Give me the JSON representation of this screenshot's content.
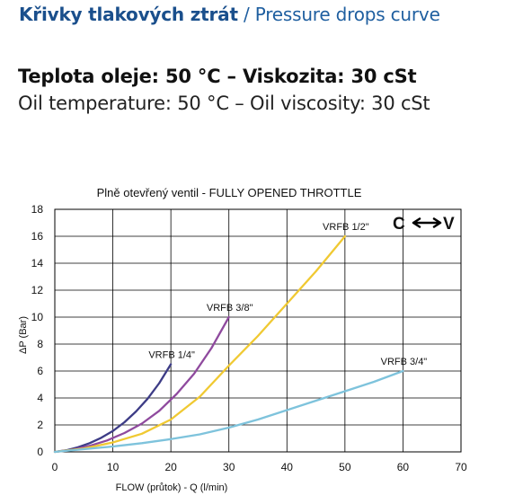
{
  "header": {
    "title_cz": "Křivky tlakových ztrát",
    "title_separator": " / ",
    "title_en": "Pressure drops curve",
    "temp_cz": "Teplota oleje: 50 °C – Viskozita: 30 cSt",
    "temp_en": "Oil temperature: 50 °C – Oil viscosity: 30 cSt"
  },
  "chart_data": {
    "type": "line",
    "title": "Plně otevřený ventil - FULLY OPENED THROTTLE",
    "direction_label": "C",
    "direction_label_end": "V",
    "xlabel": "FLOW (průtok) - Q (l/min)",
    "ylabel": "ΔP (Bar)",
    "xlim": [
      0,
      70
    ],
    "ylim": [
      0,
      18
    ],
    "xticks": [
      0,
      10,
      20,
      30,
      40,
      50,
      60,
      70
    ],
    "yticks": [
      0,
      2,
      4,
      6,
      8,
      10,
      12,
      14,
      16,
      18
    ],
    "grid": true,
    "series": [
      {
        "name": "VRFB 1/4\"",
        "color": "#3d3c86",
        "x": [
          0,
          2,
          4,
          6,
          8,
          10,
          12,
          14,
          16,
          18,
          20
        ],
        "y": [
          0,
          0.12,
          0.35,
          0.65,
          1.05,
          1.55,
          2.2,
          3.0,
          3.95,
          5.1,
          6.5
        ]
      },
      {
        "name": "VRFB 3/8\"",
        "color": "#8f4a9e",
        "x": [
          0,
          3,
          6,
          9,
          12,
          15,
          18,
          21,
          24,
          27,
          30
        ],
        "y": [
          0,
          0.15,
          0.45,
          0.85,
          1.4,
          2.1,
          3.05,
          4.3,
          5.8,
          7.7,
          10
        ]
      },
      {
        "name": "VRFB 1/2\"",
        "color": "#f0c932",
        "x": [
          0,
          5,
          10,
          15,
          20,
          25,
          30,
          35,
          40,
          45,
          50
        ],
        "y": [
          0,
          0.25,
          0.7,
          1.35,
          2.4,
          4.1,
          6.4,
          8.6,
          11.0,
          13.4,
          16.0
        ]
      },
      {
        "name": "VRFB 3/4\"",
        "color": "#7ec3dc",
        "x": [
          0,
          10,
          15,
          20,
          25,
          30,
          35,
          40,
          45,
          50,
          55,
          60
        ],
        "y": [
          0,
          0.4,
          0.65,
          0.95,
          1.3,
          1.8,
          2.4,
          3.1,
          3.8,
          4.5,
          5.2,
          6.0
        ]
      }
    ]
  }
}
